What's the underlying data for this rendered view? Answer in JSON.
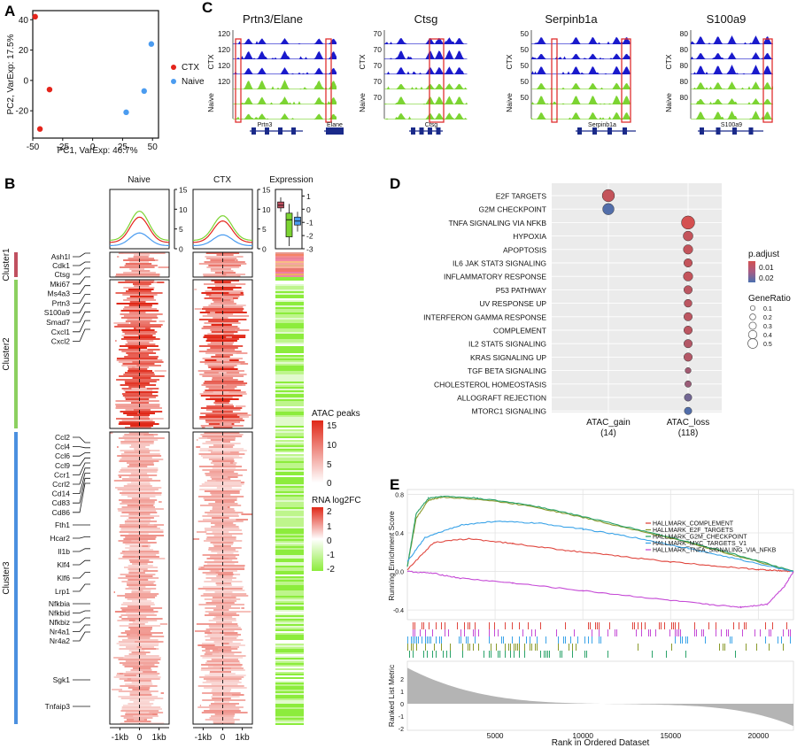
{
  "panels": {
    "A": "A",
    "B": "B",
    "C": "C",
    "D": "D",
    "E": "E"
  },
  "colors": {
    "ctx": "#e4241b",
    "naive": "#4b9cf0",
    "peak_blue": "#1a1acc",
    "peak_green": "#7cd432",
    "highlight": "#e03030",
    "heat_red": "#e02818",
    "fc_green": "#8cec3c",
    "cluster1": "#c05060",
    "cluster2": "#8cd060",
    "cluster3": "#4b90e0",
    "dot_high": "#d45050",
    "dot_low": "#4a70b0",
    "mid_red": "#d24848",
    "mid_blue": "#3a6aa8",
    "es_complement": "#e0473f",
    "es_e2f": "#8a9a2c",
    "es_g2m": "#2ba36a",
    "es_myc": "#3aa3e8",
    "es_tnfa": "#c54ad6"
  },
  "chart_data": [
    {
      "type": "scatter",
      "xlabel": "PC1, VarExp: 46.7%",
      "ylabel": "PC2, VarExp: 17.5%",
      "xlim": [
        -50,
        55
      ],
      "ylim": [
        -38,
        46
      ],
      "xticks": [
        "-50",
        "-25",
        "0",
        "25",
        "50"
      ],
      "yticks": [
        "40",
        "20",
        "0",
        "-20"
      ],
      "legend": [
        "CTX",
        "Naive"
      ],
      "series": [
        {
          "name": "CTX",
          "points": [
            [
              -48,
              42
            ],
            [
              -36,
              -6
            ],
            [
              -44,
              -32
            ]
          ]
        },
        {
          "name": "Naive",
          "points": [
            [
              49,
              24
            ],
            [
              43,
              -7
            ],
            [
              28,
              -21
            ]
          ]
        }
      ]
    },
    {
      "type": "other",
      "chart": "genome-browser-tracks",
      "track_labels": [
        "CTX",
        "Naive"
      ],
      "tracks": [
        {
          "title": "Prtn3/Elane",
          "ticks": [
            "120",
            "120",
            "120",
            "120"
          ],
          "genes": [
            "Prtn3",
            "Elane"
          ],
          "bars": [
            2,
            4
          ]
        },
        {
          "title": "Ctsg",
          "ticks": [
            "70",
            "70",
            "70",
            "70",
            "70"
          ],
          "genes": [
            "Ctsg"
          ],
          "bars": [
            4
          ]
        },
        {
          "title": "Serpinb1a",
          "ticks": [
            "50",
            "50",
            "50",
            "50",
            "50"
          ],
          "genes": [
            "Serpinb1a"
          ],
          "bars": [
            2,
            4
          ]
        },
        {
          "title": "S100a9",
          "ticks": [
            "80",
            "80",
            "80",
            "80",
            "80"
          ],
          "genes": [
            "S100a9"
          ],
          "bars": [
            4
          ]
        }
      ]
    },
    {
      "type": "heatmap",
      "column_titles": [
        "Naive",
        "CTX",
        "Expression"
      ],
      "x_ticks": [
        "-1kb",
        "0",
        "1kb"
      ],
      "profile_yticks": [
        "15",
        "10",
        "5",
        "0"
      ],
      "profile_series": [
        {
          "name": "Cluster1",
          "peak": 9.5,
          "flank": 6
        },
        {
          "name": "Cluster2",
          "peak": 8,
          "flank": 4.5
        },
        {
          "name": "Cluster3",
          "peak": 4,
          "flank": 2.2
        }
      ],
      "expression_yticks": [
        "1",
        "0",
        "-1",
        "-2",
        "-3"
      ],
      "expression_box_medians": [
        0.3,
        -0.8,
        -0.9
      ],
      "clusters": [
        "Cluster1",
        "Cluster2",
        "Cluster3"
      ],
      "row_genes": {
        "Cluster1": [
          "Ash1l",
          "Cdk1"
        ],
        "Cluster2": [
          "Ctsg",
          "Mki67",
          "Ms4a3",
          "Prtn3",
          "S100a9",
          "Smad7",
          "Cxcl1",
          "Cxcl2"
        ],
        "Cluster3a": [
          "Ccl2",
          "Ccl4",
          "Ccl6",
          "Ccl9",
          "Ccr1",
          "Ccrl2",
          "Cd14",
          "Cd83",
          "Cd86"
        ],
        "Cluster3b": [
          "Fth1",
          "Hcar2",
          "Il1b",
          "Klf4",
          "Klf6",
          "Lrp1"
        ],
        "Cluster3c": [
          "Nfkbia",
          "Nfkbid",
          "Nfkbiz",
          "Nr4a1",
          "Nr4a2"
        ],
        "Cluster3d": [
          "Sgk1",
          "Tnfaip3"
        ]
      },
      "legend_atac": {
        "title": "ATAC peaks",
        "ticks": [
          "15",
          "10",
          "5",
          "0"
        ]
      },
      "legend_rna": {
        "title": "RNA log2FC",
        "ticks": [
          "2",
          "1",
          "0",
          "-1",
          "-2"
        ]
      }
    },
    {
      "type": "scatter",
      "chart": "dotplot",
      "x_categories": [
        {
          "label": "ATAC_gain",
          "count": "(14)"
        },
        {
          "label": "ATAC_loss",
          "count": "(118)"
        }
      ],
      "terms": [
        "E2F TARGETS",
        "G2M CHECKPOINT",
        "TNFA SIGNALING VIA NFKB",
        "HYPOXIA",
        "APOPTOSIS",
        "IL6 JAK STAT3 SIGNALING",
        "INFLAMMATORY RESPONSE",
        "P53 PATHWAY",
        "UV RESPONSE UP",
        "INTERFERON GAMMA RESPONSE",
        "COMPLEMENT",
        "IL2 STAT5 SIGNALING",
        "KRAS SIGNALING UP",
        "TGF BETA SIGNALING",
        "CHOLESTEROL HOMEOSTASIS",
        "ALLOGRAFT REJECTION",
        "MTORC1 SIGNALING"
      ],
      "points": [
        {
          "term": "E2F TARGETS",
          "x": "ATAC_gain",
          "gene_ratio": 0.45,
          "p_adjust": 0.008
        },
        {
          "term": "G2M CHECKPOINT",
          "x": "ATAC_gain",
          "gene_ratio": 0.4,
          "p_adjust": 0.022
        },
        {
          "term": "TNFA SIGNALING VIA NFKB",
          "x": "ATAC_loss",
          "gene_ratio": 0.5,
          "p_adjust": 0.006
        },
        {
          "term": "HYPOXIA",
          "x": "ATAC_loss",
          "gene_ratio": 0.32,
          "p_adjust": 0.008
        },
        {
          "term": "APOPTOSIS",
          "x": "ATAC_loss",
          "gene_ratio": 0.3,
          "p_adjust": 0.008
        },
        {
          "term": "IL6 JAK STAT3 SIGNALING",
          "x": "ATAC_loss",
          "gene_ratio": 0.25,
          "p_adjust": 0.008
        },
        {
          "term": "INFLAMMATORY RESPONSE",
          "x": "ATAC_loss",
          "gene_ratio": 0.3,
          "p_adjust": 0.008
        },
        {
          "term": "P53 PATHWAY",
          "x": "ATAC_loss",
          "gene_ratio": 0.25,
          "p_adjust": 0.009
        },
        {
          "term": "UV RESPONSE UP",
          "x": "ATAC_loss",
          "gene_ratio": 0.22,
          "p_adjust": 0.009
        },
        {
          "term": "INTERFERON GAMMA RESPONSE",
          "x": "ATAC_loss",
          "gene_ratio": 0.25,
          "p_adjust": 0.009
        },
        {
          "term": "COMPLEMENT",
          "x": "ATAC_loss",
          "gene_ratio": 0.25,
          "p_adjust": 0.009
        },
        {
          "term": "IL2 STAT5 SIGNALING",
          "x": "ATAC_loss",
          "gene_ratio": 0.25,
          "p_adjust": 0.01
        },
        {
          "term": "KRAS SIGNALING UP",
          "x": "ATAC_loss",
          "gene_ratio": 0.25,
          "p_adjust": 0.01
        },
        {
          "term": "TGF BETA SIGNALING",
          "x": "ATAC_loss",
          "gene_ratio": 0.12,
          "p_adjust": 0.012
        },
        {
          "term": "CHOLESTEROL HOMEOSTASIS",
          "x": "ATAC_loss",
          "gene_ratio": 0.15,
          "p_adjust": 0.013
        },
        {
          "term": "ALLOGRAFT REJECTION",
          "x": "ATAC_loss",
          "gene_ratio": 0.2,
          "p_adjust": 0.018
        },
        {
          "term": "MTORC1 SIGNALING",
          "x": "ATAC_loss",
          "gene_ratio": 0.2,
          "p_adjust": 0.022
        }
      ],
      "legend_padjust": {
        "title": "p.adjust",
        "ticks": [
          "0.01",
          "0.02"
        ]
      },
      "legend_generatio": {
        "title": "GeneRatio",
        "ticks": [
          "0.1",
          "0.2",
          "0.3",
          "0.4",
          "0.5"
        ]
      }
    },
    {
      "type": "line",
      "ylabel": "Running Enrichment Score",
      "xlabel": "Rank in Ordered Dataset",
      "xlim": [
        0,
        22000
      ],
      "ylim": [
        -0.5,
        0.85
      ],
      "yticks": [
        "0.8",
        "0.4",
        "0.0",
        "-0.4"
      ],
      "xticks": [
        "5000",
        "10000",
        "15000",
        "20000"
      ],
      "series": [
        {
          "name": "HALLMARK_COMPLEMENT",
          "x": [
            0,
            1500,
            3500,
            6000,
            9000,
            12000,
            15000,
            18000,
            20000,
            21000,
            22000
          ],
          "values": [
            0.02,
            0.3,
            0.34,
            0.29,
            0.22,
            0.16,
            0.1,
            0.05,
            0.02,
            0.01,
            0.0
          ]
        },
        {
          "name": "HALLMARK_E2F_TARGETS",
          "x": [
            0,
            500,
            1200,
            2000,
            4000,
            7000,
            10000,
            13000,
            16000,
            19000,
            22000
          ],
          "values": [
            0.05,
            0.55,
            0.74,
            0.77,
            0.75,
            0.68,
            0.56,
            0.43,
            0.3,
            0.15,
            0.0
          ]
        },
        {
          "name": "HALLMARK_G2M_CHECKPOINT",
          "x": [
            0,
            500,
            1200,
            2000,
            4000,
            7000,
            10000,
            13000,
            16000,
            19000,
            22000
          ],
          "values": [
            0.05,
            0.6,
            0.76,
            0.78,
            0.76,
            0.69,
            0.57,
            0.44,
            0.31,
            0.16,
            0.0
          ]
        },
        {
          "name": "HALLMARK_MYC_TARGETS_V1",
          "x": [
            0,
            1000,
            3000,
            5000,
            7500,
            10000,
            13000,
            16000,
            19000,
            22000
          ],
          "values": [
            0.1,
            0.35,
            0.48,
            0.52,
            0.5,
            0.44,
            0.35,
            0.24,
            0.12,
            0.0
          ]
        },
        {
          "name": "HALLMARK_TNFA_SIGNALING_VIA_NFKB",
          "x": [
            0,
            1500,
            3000,
            6000,
            10000,
            14000,
            17000,
            19000,
            20500,
            21500,
            22000
          ],
          "values": [
            0.0,
            -0.02,
            -0.07,
            -0.12,
            -0.2,
            -0.28,
            -0.34,
            -0.37,
            -0.34,
            -0.15,
            0.0
          ]
        }
      ],
      "lower_ylabel": "Ranked List Metric",
      "lower_yticks": [
        "2",
        "1",
        "0",
        "-1",
        "-2"
      ]
    }
  ]
}
